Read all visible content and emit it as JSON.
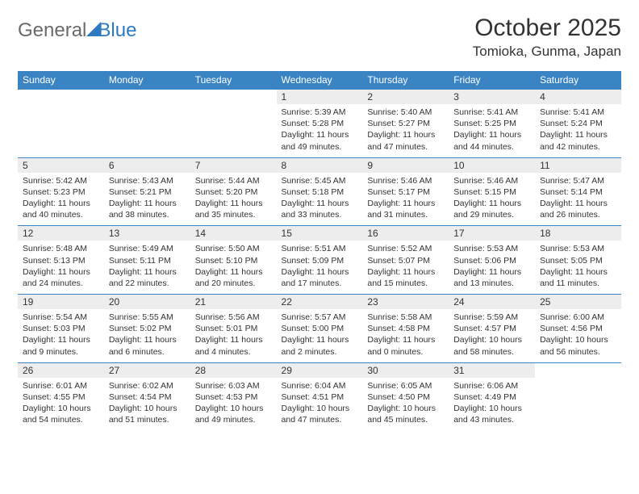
{
  "brand": {
    "part1": "General",
    "part2": "Blue"
  },
  "title": "October 2025",
  "location": "Tomioka, Gunma, Japan",
  "colors": {
    "header_bg": "#3b84c4",
    "header_text": "#ffffff",
    "daynum_bg": "#ededed",
    "border": "#3b84c4",
    "text": "#333333",
    "logo_gray": "#6a6a6a",
    "logo_blue": "#2d7ac0"
  },
  "weekdays": [
    "Sunday",
    "Monday",
    "Tuesday",
    "Wednesday",
    "Thursday",
    "Friday",
    "Saturday"
  ],
  "weeks": [
    [
      null,
      null,
      null,
      {
        "n": "1",
        "sr": "5:39 AM",
        "ss": "5:28 PM",
        "dl": "11 hours and 49 minutes."
      },
      {
        "n": "2",
        "sr": "5:40 AM",
        "ss": "5:27 PM",
        "dl": "11 hours and 47 minutes."
      },
      {
        "n": "3",
        "sr": "5:41 AM",
        "ss": "5:25 PM",
        "dl": "11 hours and 44 minutes."
      },
      {
        "n": "4",
        "sr": "5:41 AM",
        "ss": "5:24 PM",
        "dl": "11 hours and 42 minutes."
      }
    ],
    [
      {
        "n": "5",
        "sr": "5:42 AM",
        "ss": "5:23 PM",
        "dl": "11 hours and 40 minutes."
      },
      {
        "n": "6",
        "sr": "5:43 AM",
        "ss": "5:21 PM",
        "dl": "11 hours and 38 minutes."
      },
      {
        "n": "7",
        "sr": "5:44 AM",
        "ss": "5:20 PM",
        "dl": "11 hours and 35 minutes."
      },
      {
        "n": "8",
        "sr": "5:45 AM",
        "ss": "5:18 PM",
        "dl": "11 hours and 33 minutes."
      },
      {
        "n": "9",
        "sr": "5:46 AM",
        "ss": "5:17 PM",
        "dl": "11 hours and 31 minutes."
      },
      {
        "n": "10",
        "sr": "5:46 AM",
        "ss": "5:15 PM",
        "dl": "11 hours and 29 minutes."
      },
      {
        "n": "11",
        "sr": "5:47 AM",
        "ss": "5:14 PM",
        "dl": "11 hours and 26 minutes."
      }
    ],
    [
      {
        "n": "12",
        "sr": "5:48 AM",
        "ss": "5:13 PM",
        "dl": "11 hours and 24 minutes."
      },
      {
        "n": "13",
        "sr": "5:49 AM",
        "ss": "5:11 PM",
        "dl": "11 hours and 22 minutes."
      },
      {
        "n": "14",
        "sr": "5:50 AM",
        "ss": "5:10 PM",
        "dl": "11 hours and 20 minutes."
      },
      {
        "n": "15",
        "sr": "5:51 AM",
        "ss": "5:09 PM",
        "dl": "11 hours and 17 minutes."
      },
      {
        "n": "16",
        "sr": "5:52 AM",
        "ss": "5:07 PM",
        "dl": "11 hours and 15 minutes."
      },
      {
        "n": "17",
        "sr": "5:53 AM",
        "ss": "5:06 PM",
        "dl": "11 hours and 13 minutes."
      },
      {
        "n": "18",
        "sr": "5:53 AM",
        "ss": "5:05 PM",
        "dl": "11 hours and 11 minutes."
      }
    ],
    [
      {
        "n": "19",
        "sr": "5:54 AM",
        "ss": "5:03 PM",
        "dl": "11 hours and 9 minutes."
      },
      {
        "n": "20",
        "sr": "5:55 AM",
        "ss": "5:02 PM",
        "dl": "11 hours and 6 minutes."
      },
      {
        "n": "21",
        "sr": "5:56 AM",
        "ss": "5:01 PM",
        "dl": "11 hours and 4 minutes."
      },
      {
        "n": "22",
        "sr": "5:57 AM",
        "ss": "5:00 PM",
        "dl": "11 hours and 2 minutes."
      },
      {
        "n": "23",
        "sr": "5:58 AM",
        "ss": "4:58 PM",
        "dl": "11 hours and 0 minutes."
      },
      {
        "n": "24",
        "sr": "5:59 AM",
        "ss": "4:57 PM",
        "dl": "10 hours and 58 minutes."
      },
      {
        "n": "25",
        "sr": "6:00 AM",
        "ss": "4:56 PM",
        "dl": "10 hours and 56 minutes."
      }
    ],
    [
      {
        "n": "26",
        "sr": "6:01 AM",
        "ss": "4:55 PM",
        "dl": "10 hours and 54 minutes."
      },
      {
        "n": "27",
        "sr": "6:02 AM",
        "ss": "4:54 PM",
        "dl": "10 hours and 51 minutes."
      },
      {
        "n": "28",
        "sr": "6:03 AM",
        "ss": "4:53 PM",
        "dl": "10 hours and 49 minutes."
      },
      {
        "n": "29",
        "sr": "6:04 AM",
        "ss": "4:51 PM",
        "dl": "10 hours and 47 minutes."
      },
      {
        "n": "30",
        "sr": "6:05 AM",
        "ss": "4:50 PM",
        "dl": "10 hours and 45 minutes."
      },
      {
        "n": "31",
        "sr": "6:06 AM",
        "ss": "4:49 PM",
        "dl": "10 hours and 43 minutes."
      },
      null
    ]
  ],
  "labels": {
    "sunrise": "Sunrise:",
    "sunset": "Sunset:",
    "daylight": "Daylight:"
  }
}
